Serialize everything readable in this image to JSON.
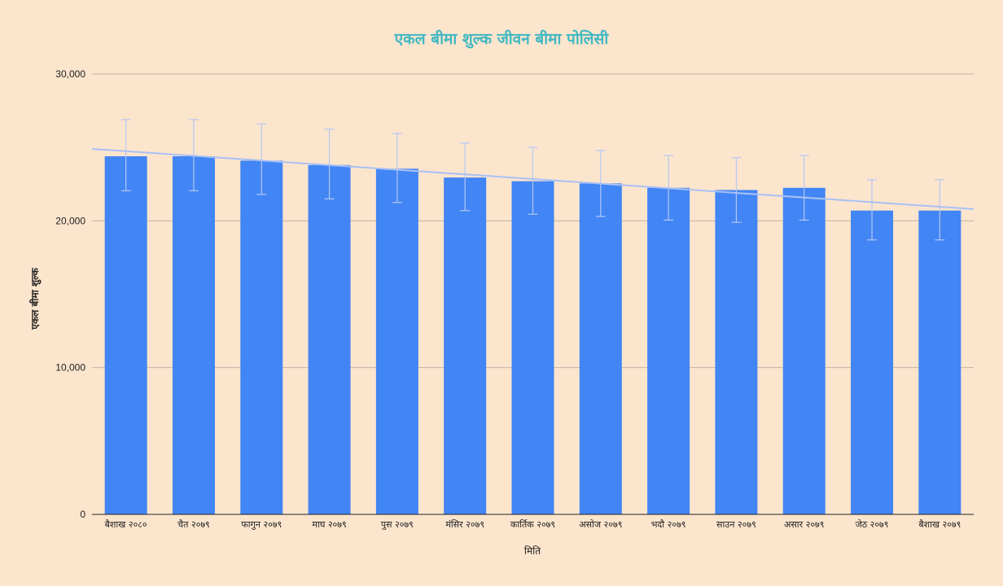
{
  "colors": {
    "background": "#fce5cd",
    "bar": "#4285f4",
    "trendline": "#a9c1f5",
    "error_bar": "#b4c8f4",
    "gridline": "#c0b5a8",
    "baseline": "#222222",
    "title": "#40b8c2"
  },
  "chart_data": {
    "type": "bar",
    "title": "एकल बीमा शुल्क जीवन बीमा पोलिसी",
    "xlabel": "मिति",
    "ylabel": "एकल बीमा शुल्क",
    "categories": [
      "बैशाख २०८०",
      "चैत २०७९",
      "फागुन २०७९",
      "माघ २०७९",
      "पुस २०७९",
      "मंसिर २०७९",
      "कार्तिक २०७९",
      "असोज २०७९",
      "भदौ २०७९",
      "साउन २०७९",
      "असार २०७९",
      "जेठ २०७९",
      "बैशाख २०७९"
    ],
    "values": [
      24400,
      24400,
      24100,
      23800,
      23550,
      22950,
      22700,
      22550,
      22250,
      22100,
      22250,
      20700,
      20700
    ],
    "error_bars": [
      {
        "low": 22050,
        "high": 26900
      },
      {
        "low": 22050,
        "high": 26900
      },
      {
        "low": 21800,
        "high": 26600
      },
      {
        "low": 21500,
        "high": 26250
      },
      {
        "low": 21250,
        "high": 25950
      },
      {
        "low": 20700,
        "high": 25300
      },
      {
        "low": 20450,
        "high": 25000
      },
      {
        "low": 20300,
        "high": 24800
      },
      {
        "low": 20050,
        "high": 24450
      },
      {
        "low": 19900,
        "high": 24300
      },
      {
        "low": 20050,
        "high": 24450
      },
      {
        "low": 18700,
        "high": 22800
      },
      {
        "low": 18700,
        "high": 22800
      }
    ],
    "trendline": {
      "start": 24900,
      "end": 20800
    },
    "ylim": [
      0,
      30000
    ],
    "yticks": [
      0,
      10000,
      20000,
      30000
    ],
    "ytick_labels": [
      "0",
      "10,000",
      "20,000",
      "30,000"
    ],
    "grid": true,
    "legend": "none"
  }
}
